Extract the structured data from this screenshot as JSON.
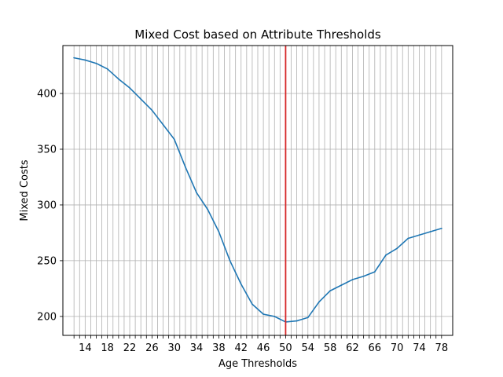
{
  "chart_data": {
    "type": "line",
    "title": "Mixed Cost based on Attribute Thresholds",
    "xlabel": "Age Thresholds",
    "ylabel": "Mixed Costs",
    "xlim": [
      10,
      80
    ],
    "ylim": [
      183,
      443
    ],
    "x_labeled_ticks": [
      14,
      18,
      22,
      26,
      30,
      34,
      38,
      42,
      46,
      50,
      54,
      58,
      62,
      66,
      70,
      74,
      78
    ],
    "x_grid_ticks": [
      12,
      13,
      14,
      15,
      16,
      17,
      18,
      19,
      20,
      21,
      22,
      23,
      24,
      25,
      26,
      27,
      28,
      29,
      30,
      31,
      32,
      33,
      34,
      35,
      36,
      37,
      38,
      39,
      40,
      41,
      42,
      43,
      44,
      45,
      46,
      47,
      48,
      49,
      50,
      51,
      52,
      53,
      54,
      55,
      56,
      57,
      58,
      59,
      60,
      61,
      62,
      63,
      64,
      65,
      66,
      67,
      68,
      69,
      70,
      71,
      72,
      73,
      74,
      75,
      76,
      77,
      78
    ],
    "y_ticks": [
      200,
      250,
      300,
      350,
      400
    ],
    "grid": true,
    "vline": {
      "x": 50,
      "color": "#d62728"
    },
    "series": [
      {
        "color": "#1f77b4",
        "x": [
          12,
          14,
          16,
          18,
          20,
          22,
          24,
          26,
          28,
          30,
          32,
          34,
          36,
          38,
          40,
          42,
          44,
          46,
          48,
          50,
          52,
          54,
          56,
          58,
          60,
          62,
          64,
          66,
          68,
          70,
          72,
          74,
          76,
          78
        ],
        "y": [
          432,
          430,
          427,
          422,
          413,
          405,
          395,
          385,
          372,
          359,
          334,
          311,
          296,
          276,
          250,
          229,
          211,
          202,
          200,
          195,
          196,
          199,
          213,
          223,
          228,
          233,
          236,
          240,
          255,
          261,
          270,
          273,
          276,
          279
        ]
      }
    ]
  }
}
